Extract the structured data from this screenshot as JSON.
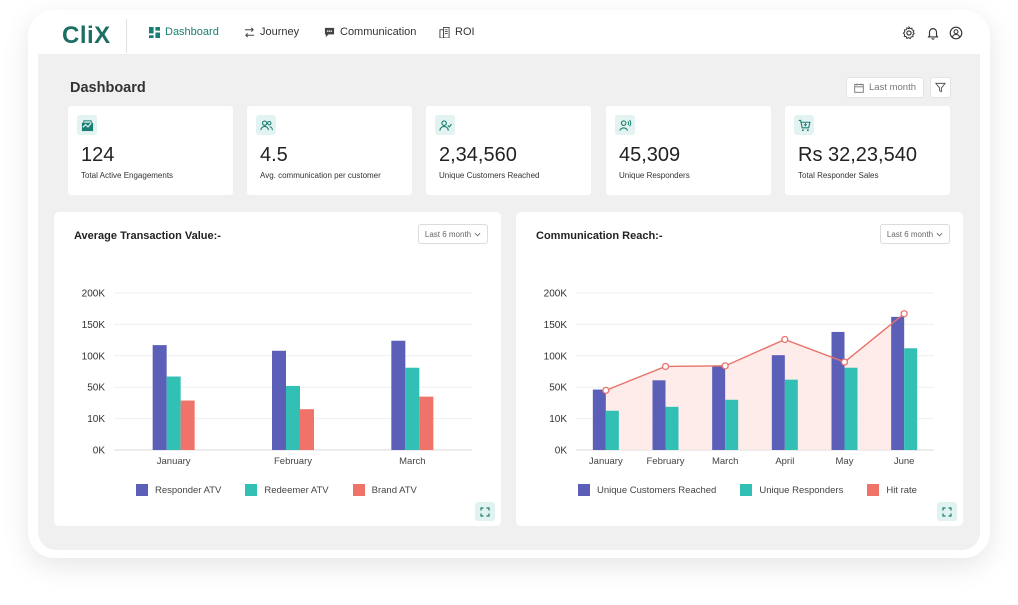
{
  "app": {
    "logo": "CliX"
  },
  "nav": [
    {
      "label": "Dashboard",
      "active": true
    },
    {
      "label": "Journey",
      "active": false
    },
    {
      "label": "Communication",
      "active": false
    },
    {
      "label": "ROI",
      "active": false
    }
  ],
  "page": {
    "title": "Dashboard",
    "date_filter": "Last month"
  },
  "kpis": [
    {
      "value": "124",
      "label": "Total Active Engagements",
      "icon": "engagement-icon"
    },
    {
      "value": "4.5",
      "label": "Avg. communication per customer",
      "icon": "users-icon"
    },
    {
      "value": "2,34,560",
      "label": "Unique Customers Reached",
      "icon": "user-check-icon"
    },
    {
      "value": "45,309",
      "label": "Unique Responders",
      "icon": "user-voice-icon"
    },
    {
      "value": "Rs 32,23,540",
      "label": "Total Responder Sales",
      "icon": "cart-icon"
    }
  ],
  "panels": {
    "atv": {
      "title": "Average Transaction Value:-",
      "range": "Last 6 month"
    },
    "reach": {
      "title": "Communication Reach:-",
      "range": "Last 6 month"
    }
  },
  "colors": {
    "accent": "#1a7f72",
    "purple": "#5b5fb8",
    "teal": "#33c0b4",
    "coral": "#f07369",
    "line": "#e8736b",
    "area": "#fde9e6"
  },
  "chart_data": [
    {
      "type": "bar",
      "title": "Average Transaction Value:-",
      "categories": [
        "January",
        "February",
        "March"
      ],
      "y_ticks": [
        "0K",
        "10K",
        "50K",
        "100K",
        "150K",
        "200K"
      ],
      "ylim": [
        0,
        200
      ],
      "series": [
        {
          "name": "Responder ATV",
          "values": [
            117,
            108,
            124
          ]
        },
        {
          "name": "Redeemer ATV",
          "values": [
            67,
            52,
            81
          ]
        },
        {
          "name": "Brand ATV",
          "values": [
            33,
            22,
            38
          ]
        }
      ],
      "legend": "bottom",
      "grid": true
    },
    {
      "type": "bar",
      "title": "Communication Reach:-",
      "categories": [
        "January",
        "February",
        "March",
        "April",
        "May",
        "June"
      ],
      "y_ticks": [
        "0K",
        "10K",
        "50K",
        "100K",
        "150K",
        "200K"
      ],
      "ylim": [
        0,
        200
      ],
      "series": [
        {
          "name": "Unique Customers Reached",
          "values": [
            47,
            61,
            83,
            101,
            138,
            162
          ]
        },
        {
          "name": "Unique Responders",
          "values": [
            20,
            25,
            34,
            62,
            81,
            112
          ]
        },
        {
          "name": "Hit rate",
          "type": "line",
          "values": [
            46,
            83,
            84,
            126,
            90,
            167
          ]
        }
      ],
      "legend": "bottom",
      "grid": true
    }
  ]
}
